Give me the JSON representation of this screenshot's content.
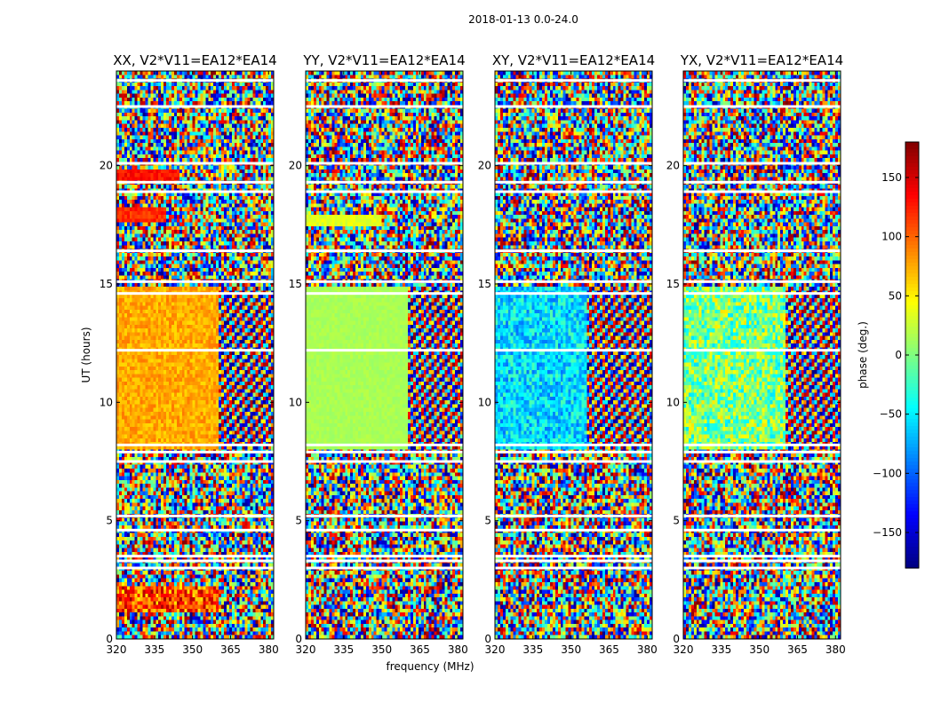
{
  "chart_data": {
    "type": "heatmap",
    "suptitle": "2018-01-13 0.0-24.0",
    "xlabel": "frequency (MHz)",
    "ylabel": "UT (hours)",
    "xlim": [
      320,
      382
    ],
    "ylim": [
      0,
      24
    ],
    "xticks": [
      320,
      335,
      350,
      365,
      380
    ],
    "yticks": [
      0,
      5,
      10,
      15,
      20
    ],
    "panels": [
      {
        "title": "XX, V2*V11=EA12*EA14",
        "regions": [
          {
            "x": [
              320,
              360
            ],
            "y": [
              8.0,
              14.8
            ],
            "phase": 75,
            "noise": 18
          },
          {
            "x": [
              360,
              382
            ],
            "y": [
              8.0,
              14.8
            ],
            "phase": "fringe"
          },
          {
            "x": [
              320,
              340
            ],
            "y": [
              17.6,
              18.2
            ],
            "phase": 120,
            "noise": 15
          },
          {
            "x": [
              320,
              345
            ],
            "y": [
              19.4,
              19.8
            ],
            "phase": 130,
            "noise": 15
          },
          {
            "x": [
              320,
              360
            ],
            "y": [
              1.2,
              2.2
            ],
            "phase": 110,
            "noise": 60
          }
        ]
      },
      {
        "title": "YY, V2*V11=EA12*EA14",
        "regions": [
          {
            "x": [
              320,
              360
            ],
            "y": [
              8.0,
              14.8
            ],
            "phase": 15,
            "noise": 6
          },
          {
            "x": [
              360,
              382
            ],
            "y": [
              8.0,
              14.8
            ],
            "phase": "fringe"
          },
          {
            "x": [
              320,
              350
            ],
            "y": [
              17.4,
              18.0
            ],
            "phase": 35,
            "noise": 10
          }
        ]
      },
      {
        "title": "XY, V2*V11=EA12*EA14",
        "regions": [
          {
            "x": [
              320,
              356
            ],
            "y": [
              8.0,
              14.8
            ],
            "phase": -55,
            "noise": 40
          },
          {
            "x": [
              356,
              382
            ],
            "y": [
              8.0,
              14.8
            ],
            "phase": "fringe"
          }
        ]
      },
      {
        "title": "YX, V2*V11=EA12*EA14",
        "regions": [
          {
            "x": [
              320,
              360
            ],
            "y": [
              8.0,
              14.8
            ],
            "phase": 0,
            "noise": 55
          },
          {
            "x": [
              360,
              382
            ],
            "y": [
              8.0,
              14.8
            ],
            "phase": "fringe"
          }
        ]
      }
    ],
    "flagged_rows_hours": [
      3.0,
      3.3,
      3.5,
      4.6,
      5.2,
      7.5,
      7.9,
      8.2,
      12.2,
      14.6,
      15.1,
      16.4,
      18.9,
      19.3,
      20.1,
      22.5,
      23.6
    ],
    "colorbar": {
      "label": "phase (deg.)",
      "range": [
        -180,
        180
      ],
      "ticks": [
        150,
        100,
        50,
        0,
        -50,
        -100,
        -150
      ],
      "tick_labels": [
        "150",
        "100",
        "50",
        "0",
        "−50",
        "−100",
        "−150"
      ],
      "colormap": "jet"
    }
  }
}
